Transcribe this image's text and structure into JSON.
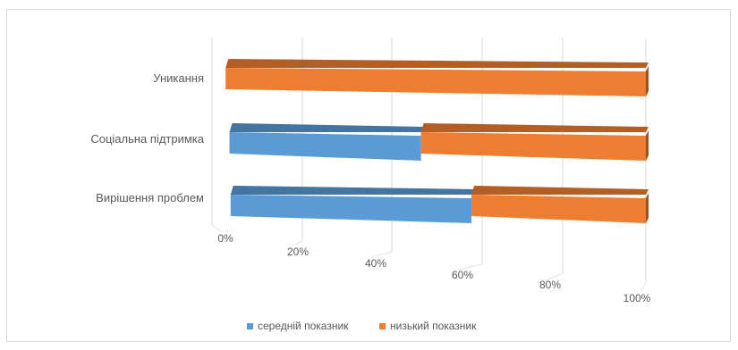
{
  "chart_data": {
    "type": "bar",
    "orientation": "horizontal",
    "stacked": "100%",
    "three_d": true,
    "categories": [
      "Уникання",
      "Соціальна підтримка",
      "Вирішення проблем"
    ],
    "series": [
      {
        "name": "середній показник",
        "values": [
          0,
          46,
          58
        ],
        "color": "#5b9bd5"
      },
      {
        "name": "низький показник",
        "values": [
          100,
          54,
          42
        ],
        "color": "#ed7d31"
      }
    ],
    "x_ticks": [
      "0%",
      "20%",
      "40%",
      "60%",
      "80%",
      "100%"
    ],
    "xlim": [
      0,
      100
    ],
    "grid": true,
    "legend_position": "bottom"
  }
}
